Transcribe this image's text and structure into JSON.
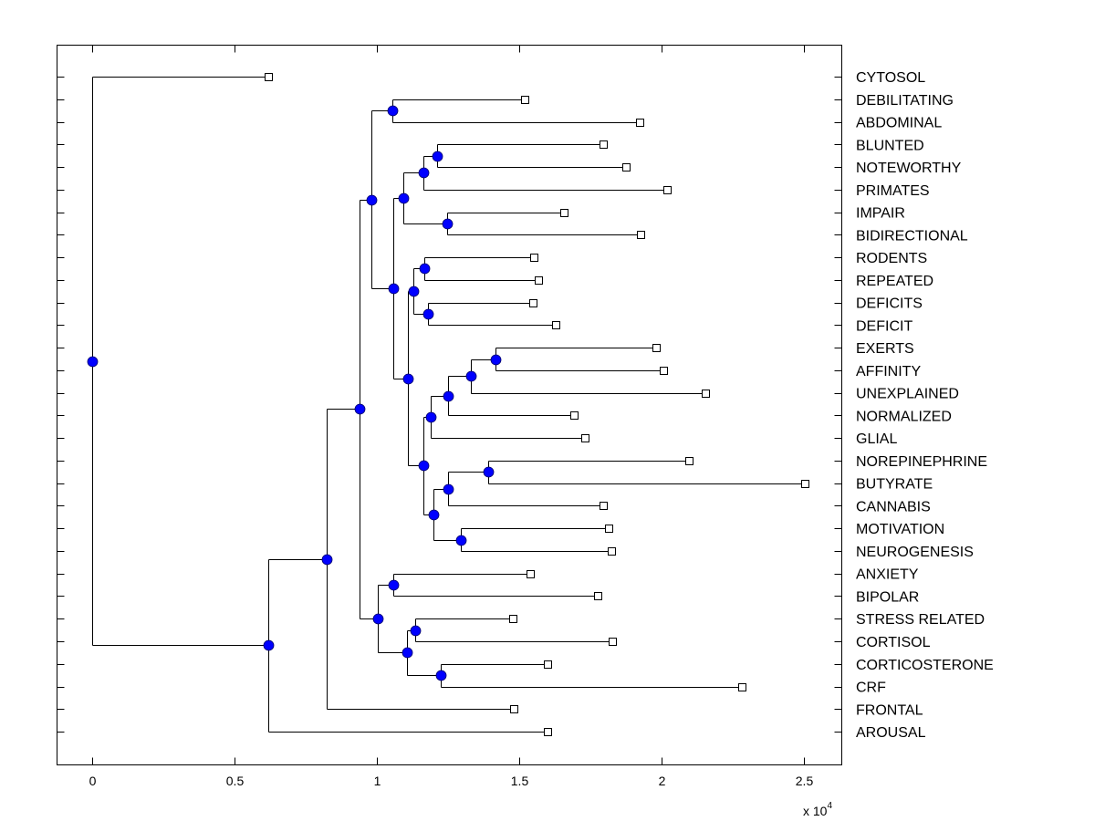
{
  "chart_data": {
    "type": "dendrogram",
    "title": "",
    "xlabel": "",
    "ylabel": "",
    "orientation": "horizontal",
    "x_multiplier": {
      "base": "x 10",
      "exponent": "4"
    },
    "xlim": [
      -0.12,
      2.63
    ],
    "xticks": [
      0,
      0.5,
      1,
      1.5,
      2,
      2.5
    ],
    "xtick_labels": [
      "0",
      "0.5",
      "1",
      "1.5",
      "2",
      "2.5"
    ],
    "grid": false,
    "leaf_marker": "open-square",
    "node_marker": "filled-circle",
    "node_color": "#0000ff",
    "line_color": "#000000",
    "leaves": [
      {
        "id": "CYTOSOL",
        "x": 0.619
      },
      {
        "id": "DEBILITATING",
        "x": 1.519
      },
      {
        "id": "ABDOMINAL",
        "x": 1.923
      },
      {
        "id": "BLUNTED",
        "x": 1.795
      },
      {
        "id": "NOTEWORTHY",
        "x": 1.875
      },
      {
        "id": "PRIMATES",
        "x": 2.019
      },
      {
        "id": "IMPAIR",
        "x": 1.657
      },
      {
        "id": "BIDIRECTIONAL",
        "x": 1.926
      },
      {
        "id": "RODENTS",
        "x": 1.551
      },
      {
        "id": "REPEATED",
        "x": 1.567
      },
      {
        "id": "DEFICITS",
        "x": 1.548
      },
      {
        "id": "DEFICIT",
        "x": 1.628
      },
      {
        "id": "EXERTS",
        "x": 1.981
      },
      {
        "id": "AFFINITY",
        "x": 2.006
      },
      {
        "id": "UNEXPLAINED",
        "x": 2.154
      },
      {
        "id": "NORMALIZED",
        "x": 1.692
      },
      {
        "id": "GLIAL",
        "x": 1.731
      },
      {
        "id": "NOREPINEPHRINE",
        "x": 2.096
      },
      {
        "id": "BUTYRATE",
        "x": 2.503
      },
      {
        "id": "CANNABIS",
        "x": 1.795
      },
      {
        "id": "MOTIVATION",
        "x": 1.814
      },
      {
        "id": "NEUROGENESIS",
        "x": 1.824
      },
      {
        "id": "ANXIETY",
        "x": 1.538
      },
      {
        "id": "BIPOLAR",
        "x": 1.776
      },
      {
        "id": "STRESS RELATED",
        "x": 1.478
      },
      {
        "id": "CORTISOL",
        "x": 1.827
      },
      {
        "id": "CORTICOSTERONE",
        "x": 1.599
      },
      {
        "id": "CRF",
        "x": 2.282
      },
      {
        "id": "FRONTAL",
        "x": 1.481
      },
      {
        "id": "AROUSAL",
        "x": 1.599
      }
    ],
    "nodes": [
      {
        "id": "n_ea",
        "x": 1.417,
        "children": [
          "EXERTS",
          "AFFINITY"
        ]
      },
      {
        "id": "n_eau",
        "x": 1.33,
        "children": [
          "n_ea",
          "UNEXPLAINED"
        ]
      },
      {
        "id": "n_eaun",
        "x": 1.25,
        "children": [
          "n_eau",
          "NORMALIZED"
        ]
      },
      {
        "id": "n_eaung",
        "x": 1.189,
        "children": [
          "n_eaun",
          "GLIAL"
        ]
      },
      {
        "id": "n_nb",
        "x": 1.391,
        "children": [
          "NOREPINEPHRINE",
          "BUTYRATE"
        ]
      },
      {
        "id": "n_nbc",
        "x": 1.25,
        "children": [
          "n_nb",
          "CANNABIS"
        ]
      },
      {
        "id": "n_mn",
        "x": 1.295,
        "children": [
          "MOTIVATION",
          "NEUROGENESIS"
        ]
      },
      {
        "id": "n_nbcmn",
        "x": 1.199,
        "children": [
          "n_nbc",
          "n_mn"
        ]
      },
      {
        "id": "n_mid",
        "x": 1.163,
        "children": [
          "n_eaung",
          "n_nbcmn"
        ]
      },
      {
        "id": "n_rr",
        "x": 1.167,
        "children": [
          "RODENTS",
          "REPEATED"
        ]
      },
      {
        "id": "n_dd",
        "x": 1.179,
        "children": [
          "DEFICITS",
          "DEFICIT"
        ]
      },
      {
        "id": "n_rrdd",
        "x": 1.128,
        "children": [
          "n_rr",
          "n_dd"
        ]
      },
      {
        "id": "n_rrdd_mid",
        "x": 1.109,
        "children": [
          "n_rrdd",
          "n_mid"
        ]
      },
      {
        "id": "n_bn",
        "x": 1.212,
        "children": [
          "BLUNTED",
          "NOTEWORTHY"
        ]
      },
      {
        "id": "n_bnp",
        "x": 1.163,
        "children": [
          "n_bn",
          "PRIMATES"
        ]
      },
      {
        "id": "n_ib",
        "x": 1.247,
        "children": [
          "IMPAIR",
          "BIDIRECTIONAL"
        ]
      },
      {
        "id": "n_bnpib",
        "x": 1.093,
        "children": [
          "n_bnp",
          "n_ib"
        ]
      },
      {
        "id": "n_lower_top",
        "x": 1.058,
        "children": [
          "n_bnpib",
          "n_rrdd_mid"
        ]
      },
      {
        "id": "n_da",
        "x": 1.054,
        "children": [
          "DEBILITATING",
          "ABDOMINAL"
        ]
      },
      {
        "id": "n_top",
        "x": 0.981,
        "children": [
          "n_da",
          "n_lower_top"
        ]
      },
      {
        "id": "n_ab",
        "x": 1.058,
        "children": [
          "ANXIETY",
          "BIPOLAR"
        ]
      },
      {
        "id": "n_sc",
        "x": 1.135,
        "children": [
          "STRESS RELATED",
          "CORTISOL"
        ]
      },
      {
        "id": "n_cc",
        "x": 1.224,
        "children": [
          "CORTICOSTERONE",
          "CRF"
        ]
      },
      {
        "id": "n_sccc",
        "x": 1.106,
        "children": [
          "n_sc",
          "n_cc"
        ]
      },
      {
        "id": "n_stress",
        "x": 1.003,
        "children": [
          "n_ab",
          "n_sccc"
        ]
      },
      {
        "id": "n_main",
        "x": 0.939,
        "children": [
          "n_top",
          "n_stress"
        ]
      },
      {
        "id": "n_mainf",
        "x": 0.824,
        "children": [
          "n_main",
          "FRONTAL"
        ]
      },
      {
        "id": "n_mainfa",
        "x": 0.619,
        "children": [
          "n_mainf",
          "AROUSAL"
        ]
      },
      {
        "id": "root",
        "x": 0.0,
        "children": [
          "CYTOSOL",
          "n_mainfa"
        ]
      }
    ]
  }
}
